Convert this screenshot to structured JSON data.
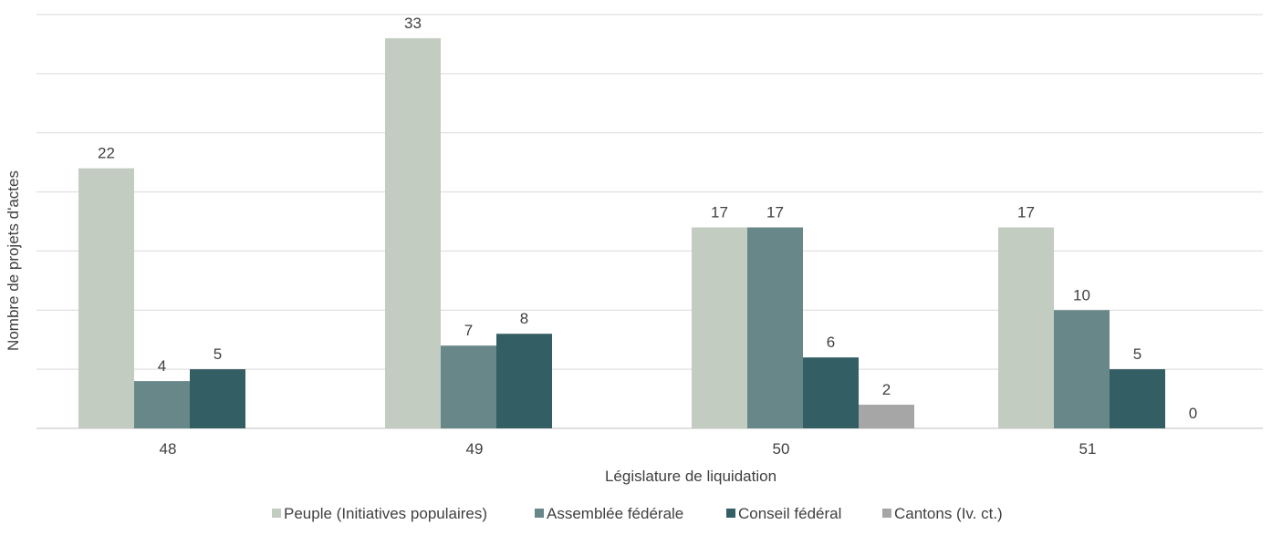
{
  "chart_data": {
    "type": "bar",
    "title": "",
    "xlabel": "Législature de liquidation",
    "ylabel": "Nombre de projets d'actes",
    "categories": [
      "48",
      "49",
      "50",
      "51"
    ],
    "series": [
      {
        "name": "Peuple (Initiatives populaires)",
        "color": "#c3ccc0",
        "values": [
          22,
          33,
          17,
          17
        ]
      },
      {
        "name": "Assemblée fédérale",
        "color": "#688788",
        "values": [
          4,
          7,
          17,
          10
        ]
      },
      {
        "name": "Conseil fédéral",
        "color": "#335e64",
        "values": [
          5,
          8,
          6,
          5
        ]
      },
      {
        "name": "Cantons (Iv. ct.)",
        "color": "#a6a6a6",
        "values": [
          null,
          null,
          2,
          0
        ]
      }
    ],
    "ylim": [
      0,
      35
    ],
    "grid": true,
    "legend": "bottom"
  }
}
